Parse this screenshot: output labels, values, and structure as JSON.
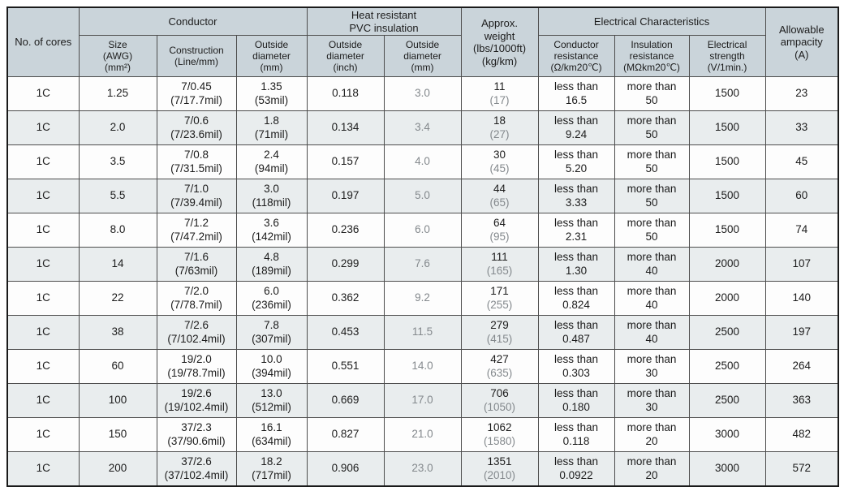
{
  "colors": {
    "header_bg": "#cad4da",
    "row_alt_bg": "#e9edee",
    "row_bg": "#fdfdfd",
    "outer_border": "#1a1a1a",
    "inner_border": "#4d4d4d",
    "text": "#1c1c1c",
    "muted_text": "#84898d"
  },
  "table": {
    "header": {
      "no_of_cores": "No. of cores",
      "conductor_group": "Conductor",
      "pvc_group": "Heat resistant\nPVC insulation",
      "weight": "Approx.\nweight\n(lbs/1000ft)\n(kg/km)",
      "electrical_group": "Electrical Characteristics",
      "ampacity": "Allowable\nampacity\n(A)",
      "size": "Size\n(AWG)\n(mm²)",
      "construction": "Construction\n(Line/mm)",
      "conductor_od": "Outside\ndiameter\n(mm)",
      "pvc_od_inch": "Outside\ndiameter\n(inch)",
      "pvc_od_mm": "Outside\ndiameter\n(mm)",
      "conductor_resistance": "Conductor\nresistance\n(Ω/km20℃)",
      "insulation_resistance": "Insulation\nresistance\n(MΩkm20℃)",
      "electrical_strength": "Electrical\nstrength\n(V/1min.)"
    },
    "columns": [
      {
        "key": "cores",
        "name": "no-of-cores-cell"
      },
      {
        "key": "size",
        "name": "size-cell"
      },
      {
        "key": "construction",
        "name": "construction-cell"
      },
      {
        "key": "conductor_od",
        "name": "conductor-od-cell"
      },
      {
        "key": "pvc_od_inch",
        "name": "pvc-od-inch-cell"
      },
      {
        "key": "pvc_od_mm",
        "name": "pvc-od-mm-cell",
        "muted": true
      },
      {
        "key": "weight",
        "name": "approx-weight-cell",
        "sub_muted": true
      },
      {
        "key": "conductor_resistance",
        "name": "conductor-resistance-cell"
      },
      {
        "key": "insulation_resistance",
        "name": "insulation-resistance-cell"
      },
      {
        "key": "electrical_strength",
        "name": "electrical-strength-cell"
      },
      {
        "key": "ampacity",
        "name": "ampacity-cell"
      }
    ],
    "rows": [
      {
        "cores": "1C",
        "size": "1.25",
        "construction": [
          "7/0.45",
          "(7/17.7mil)"
        ],
        "conductor_od": [
          "1.35",
          "(53mil)"
        ],
        "pvc_od_inch": "0.118",
        "pvc_od_mm": "3.0",
        "weight": [
          "11",
          "(17)"
        ],
        "conductor_resistance": [
          "less than",
          "16.5"
        ],
        "insulation_resistance": [
          "more than",
          "50"
        ],
        "electrical_strength": "1500",
        "ampacity": "23"
      },
      {
        "cores": "1C",
        "size": "2.0",
        "construction": [
          "7/0.6",
          "(7/23.6mil)"
        ],
        "conductor_od": [
          "1.8",
          "(71mil)"
        ],
        "pvc_od_inch": "0.134",
        "pvc_od_mm": "3.4",
        "weight": [
          "18",
          "(27)"
        ],
        "conductor_resistance": [
          "less than",
          "9.24"
        ],
        "insulation_resistance": [
          "more than",
          "50"
        ],
        "electrical_strength": "1500",
        "ampacity": "33"
      },
      {
        "cores": "1C",
        "size": "3.5",
        "construction": [
          "7/0.8",
          "(7/31.5mil)"
        ],
        "conductor_od": [
          "2.4",
          "(94mil)"
        ],
        "pvc_od_inch": "0.157",
        "pvc_od_mm": "4.0",
        "weight": [
          "30",
          "(45)"
        ],
        "conductor_resistance": [
          "less than",
          "5.20"
        ],
        "insulation_resistance": [
          "more than",
          "50"
        ],
        "electrical_strength": "1500",
        "ampacity": "45"
      },
      {
        "cores": "1C",
        "size": "5.5",
        "construction": [
          "7/1.0",
          "(7/39.4mil)"
        ],
        "conductor_od": [
          "3.0",
          "(118mil)"
        ],
        "pvc_od_inch": "0.197",
        "pvc_od_mm": "5.0",
        "weight": [
          "44",
          "(65)"
        ],
        "conductor_resistance": [
          "less than",
          "3.33"
        ],
        "insulation_resistance": [
          "more than",
          "50"
        ],
        "electrical_strength": "1500",
        "ampacity": "60"
      },
      {
        "cores": "1C",
        "size": "8.0",
        "construction": [
          "7/1.2",
          "(7/47.2mil)"
        ],
        "conductor_od": [
          "3.6",
          "(142mil)"
        ],
        "pvc_od_inch": "0.236",
        "pvc_od_mm": "6.0",
        "weight": [
          "64",
          "(95)"
        ],
        "conductor_resistance": [
          "less than",
          "2.31"
        ],
        "insulation_resistance": [
          "more than",
          "50"
        ],
        "electrical_strength": "1500",
        "ampacity": "74"
      },
      {
        "cores": "1C",
        "size": "14",
        "construction": [
          "7/1.6",
          "(7/63mil)"
        ],
        "conductor_od": [
          "4.8",
          "(189mil)"
        ],
        "pvc_od_inch": "0.299",
        "pvc_od_mm": "7.6",
        "weight": [
          "111",
          "(165)"
        ],
        "conductor_resistance": [
          "less than",
          "1.30"
        ],
        "insulation_resistance": [
          "more than",
          "40"
        ],
        "electrical_strength": "2000",
        "ampacity": "107"
      },
      {
        "cores": "1C",
        "size": "22",
        "construction": [
          "7/2.0",
          "(7/78.7mil)"
        ],
        "conductor_od": [
          "6.0",
          "(236mil)"
        ],
        "pvc_od_inch": "0.362",
        "pvc_od_mm": "9.2",
        "weight": [
          "171",
          "(255)"
        ],
        "conductor_resistance": [
          "less than",
          "0.824"
        ],
        "insulation_resistance": [
          "more than",
          "40"
        ],
        "electrical_strength": "2000",
        "ampacity": "140"
      },
      {
        "cores": "1C",
        "size": "38",
        "construction": [
          "7/2.6",
          "(7/102.4mil)"
        ],
        "conductor_od": [
          "7.8",
          "(307mil)"
        ],
        "pvc_od_inch": "0.453",
        "pvc_od_mm": "11.5",
        "weight": [
          "279",
          "(415)"
        ],
        "conductor_resistance": [
          "less than",
          "0.487"
        ],
        "insulation_resistance": [
          "more than",
          "40"
        ],
        "electrical_strength": "2500",
        "ampacity": "197"
      },
      {
        "cores": "1C",
        "size": "60",
        "construction": [
          "19/2.0",
          "(19/78.7mil)"
        ],
        "conductor_od": [
          "10.0",
          "(394mil)"
        ],
        "pvc_od_inch": "0.551",
        "pvc_od_mm": "14.0",
        "weight": [
          "427",
          "(635)"
        ],
        "conductor_resistance": [
          "less than",
          "0.303"
        ],
        "insulation_resistance": [
          "more than",
          "30"
        ],
        "electrical_strength": "2500",
        "ampacity": "264"
      },
      {
        "cores": "1C",
        "size": "100",
        "construction": [
          "19/2.6",
          "(19/102.4mil)"
        ],
        "conductor_od": [
          "13.0",
          "(512mil)"
        ],
        "pvc_od_inch": "0.669",
        "pvc_od_mm": "17.0",
        "weight": [
          "706",
          "(1050)"
        ],
        "conductor_resistance": [
          "less than",
          "0.180"
        ],
        "insulation_resistance": [
          "more than",
          "30"
        ],
        "electrical_strength": "2500",
        "ampacity": "363"
      },
      {
        "cores": "1C",
        "size": "150",
        "construction": [
          "37/2.3",
          "(37/90.6mil)"
        ],
        "conductor_od": [
          "16.1",
          "(634mil)"
        ],
        "pvc_od_inch": "0.827",
        "pvc_od_mm": "21.0",
        "weight": [
          "1062",
          "(1580)"
        ],
        "conductor_resistance": [
          "less than",
          "0.118"
        ],
        "insulation_resistance": [
          "more than",
          "20"
        ],
        "electrical_strength": "3000",
        "ampacity": "482"
      },
      {
        "cores": "1C",
        "size": "200",
        "construction": [
          "37/2.6",
          "(37/102.4mil)"
        ],
        "conductor_od": [
          "18.2",
          "(717mil)"
        ],
        "pvc_od_inch": "0.906",
        "pvc_od_mm": "23.0",
        "weight": [
          "1351",
          "(2010)"
        ],
        "conductor_resistance": [
          "less than",
          "0.0922"
        ],
        "insulation_resistance": [
          "more than",
          "20"
        ],
        "electrical_strength": "3000",
        "ampacity": "572"
      }
    ]
  }
}
